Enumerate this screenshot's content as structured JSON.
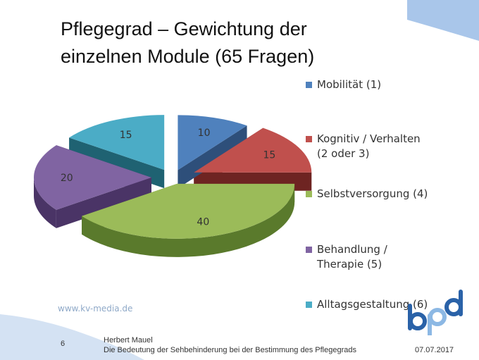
{
  "slide": {
    "title_line1": "Pflegegrad – Gewichtung der",
    "title_line2": "einzelnen Module (65 Fragen)",
    "source": "www.kv-media.de",
    "page_number": "6",
    "author": "Herbert Mauel",
    "subtitle": "Die Bedeutung der Sehbehinderung bei der Bestimmung des Pflegegrads",
    "date": "07.07.2017",
    "logo_text": "bpd"
  },
  "chart_data": {
    "type": "pie",
    "style": "3d-exploded",
    "title": "",
    "categories": [
      "Mobilität (1)",
      "Kognitiv / Verhalten\n(2 oder 3)",
      "Selbstversorgung (4)",
      "Behandlung /\nTherapie (5)",
      "Alltagsgestaltung (6)"
    ],
    "values": [
      10,
      15,
      40,
      20,
      15
    ],
    "data_labels": [
      "10",
      "15",
      "40",
      "20",
      "15"
    ],
    "colors": [
      "#4f81bd",
      "#c0504d",
      "#9bbb59",
      "#8064a2",
      "#4bacc6"
    ],
    "side_colors": [
      "#2e4f7a",
      "#6e2422",
      "#5a7a2c",
      "#4a3466",
      "#1f6272"
    ],
    "legend_position": "right"
  }
}
